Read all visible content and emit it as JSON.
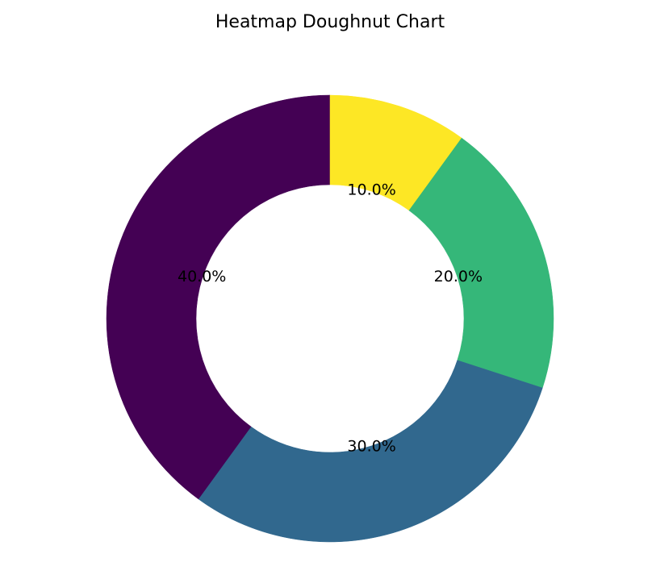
{
  "chart_data": {
    "type": "doughnut",
    "title": "Heatmap Doughnut Chart",
    "values": [
      40,
      30,
      20,
      10
    ],
    "value_labels": [
      "40.0%",
      "30.0%",
      "20.0%",
      "10.0%"
    ],
    "colors": [
      "#440154",
      "#31688e",
      "#35b779",
      "#fde725"
    ]
  }
}
